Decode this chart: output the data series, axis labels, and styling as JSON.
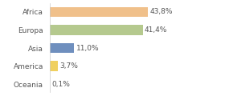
{
  "categories": [
    "Africa",
    "Europa",
    "Asia",
    "America",
    "Oceania"
  ],
  "values": [
    43.8,
    41.4,
    11.0,
    3.7,
    0.1
  ],
  "labels": [
    "43,8%",
    "41,4%",
    "11,0%",
    "3,7%",
    "0,1%"
  ],
  "bar_colors": [
    "#f0c08a",
    "#b5c98e",
    "#6f8fbe",
    "#f0d060",
    "#cccccc"
  ],
  "background_color": "#ffffff",
  "xlim": [
    0,
    60
  ],
  "label_fontsize": 6.5,
  "tick_fontsize": 6.5,
  "bar_height": 0.55
}
